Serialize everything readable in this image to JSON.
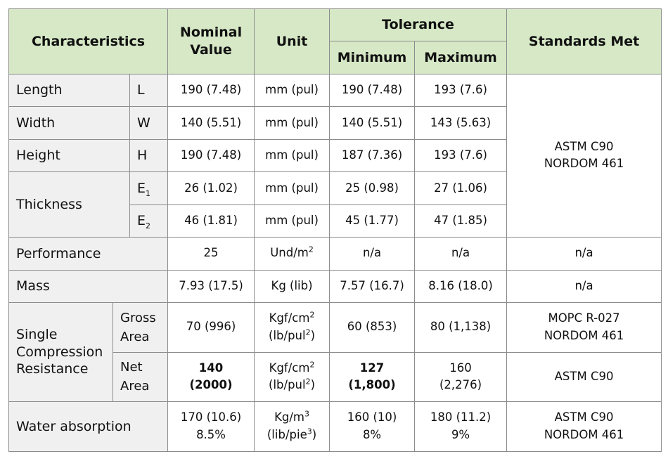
{
  "headers": {
    "characteristics": "Characteristics",
    "nominal_value": "Nominal Value",
    "unit": "Unit",
    "tolerance": "Tolerance",
    "minimum": "Minimum",
    "maximum": "Maximum",
    "standards_met": "Standards Met"
  },
  "units": {
    "mm_pul": "mm (pul)",
    "und_m": "Und/m",
    "kg_lib": "Kg (lib)",
    "kgf_cm": "Kgf/cm",
    "lb_pul": "(lb/pul",
    "kg_m": "Kg/m",
    "lib_pie": "(lib/pie",
    "sup2": "2",
    "sup3": "3",
    "close_paren": ")"
  },
  "rows": {
    "length": {
      "label": "Length",
      "symbol": "L",
      "nominal": "190 (7.48)",
      "min": "190 (7.48)",
      "max": "193 (7.6)"
    },
    "width": {
      "label": "Width",
      "symbol": "W",
      "nominal": "140 (5.51)",
      "min": "140 (5.51)",
      "max": "143 (5.63)"
    },
    "height": {
      "label": "Height",
      "symbol": "H",
      "nominal": "190 (7.48)",
      "min": "187 (7.36)",
      "max": "193 (7.6)"
    },
    "thickness": {
      "label": "Thickness",
      "e1": {
        "symbol": "E",
        "sub": "1",
        "nominal": "26 (1.02)",
        "min": "25 (0.98)",
        "max": "27 (1.06)"
      },
      "e2": {
        "symbol": "E",
        "sub": "2",
        "nominal": "46 (1.81)",
        "min": "45 (1.77)",
        "max": "47 (1.85)"
      }
    },
    "dimension_standards": {
      "line1": "ASTM C90",
      "line2": "NORDOM 461"
    },
    "performance": {
      "label": "Performance",
      "nominal": "25",
      "min": "n/a",
      "max": "n/a",
      "standards": "n/a"
    },
    "mass": {
      "label": "Mass",
      "nominal": "7.93 (17.5)",
      "min": "7.57 (16.7)",
      "max": "8.16 (18.0)",
      "standards": "n/a"
    },
    "compression": {
      "label_line1": "Single",
      "label_line2": "Compression",
      "label_line3": "Resistance",
      "gross": {
        "label_line1": "Gross",
        "label_line2": "Area",
        "nominal": "70 (996)",
        "min": "60 (853)",
        "max": "80 (1,138)",
        "standards_line1": "MOPC R-027",
        "standards_line2": "NORDOM 461"
      },
      "net": {
        "label_line1": "Net",
        "label_line2": "Area",
        "nominal_line1": "140",
        "nominal_line2": "(2000)",
        "min_line1": "127",
        "min_line2": "(1,800)",
        "max_line1": "160",
        "max_line2": "(2,276)",
        "standards": "ASTM C90"
      }
    },
    "water": {
      "label": "Water absorption",
      "nominal_line1": "170 (10.6)",
      "nominal_line2": "8.5%",
      "min_line1": "160 (10)",
      "min_line2": "8%",
      "max_line1": "180 (11.2)",
      "max_line2": "9%",
      "standards_line1": "ASTM C90",
      "standards_line2": "NORDOM 461"
    }
  }
}
